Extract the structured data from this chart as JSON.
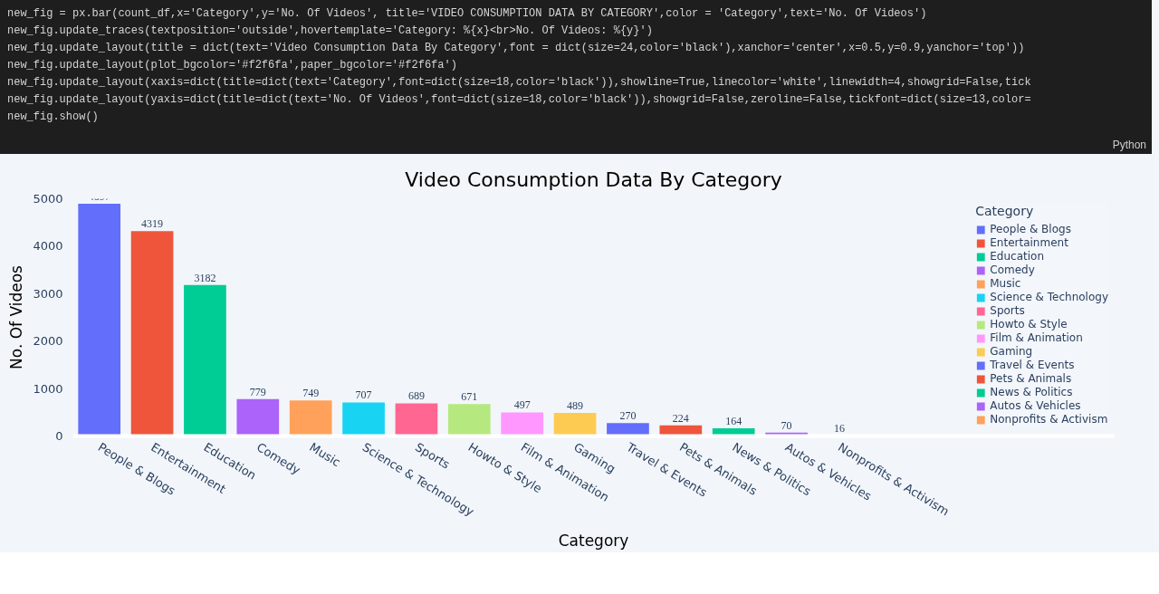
{
  "chart_data": {
    "type": "bar",
    "title": "Video Consumption Data By Category",
    "xlabel": "Category",
    "ylabel": "No. Of Videos",
    "legend_title": "Category",
    "categories": [
      "People & Blogs",
      "Entertainment",
      "Education",
      "Comedy",
      "Music",
      "Science & Technology",
      "Sports",
      "Howto & Style",
      "Film & Animation",
      "Gaming",
      "Travel & Events",
      "Pets & Animals",
      "News & Politics",
      "Autos & Vehicles",
      "Nonprofits & Activism"
    ],
    "series": [
      {
        "name": "People & Blogs",
        "color": "#636efa",
        "values": [
          4897,
          null,
          null,
          null,
          null,
          null,
          null,
          null,
          null,
          null,
          null,
          null,
          null,
          null,
          null
        ]
      },
      {
        "name": "Entertainment",
        "color": "#ef553b",
        "values": [
          null,
          4319,
          null,
          null,
          null,
          null,
          null,
          null,
          null,
          null,
          null,
          null,
          null,
          null,
          null
        ]
      },
      {
        "name": "Education",
        "color": "#00cc96",
        "values": [
          null,
          null,
          3182,
          null,
          null,
          null,
          null,
          null,
          null,
          null,
          null,
          null,
          null,
          null,
          null
        ]
      },
      {
        "name": "Comedy",
        "color": "#ab63fa",
        "values": [
          null,
          null,
          null,
          779,
          null,
          null,
          null,
          null,
          null,
          null,
          null,
          null,
          null,
          null,
          null
        ]
      },
      {
        "name": "Music",
        "color": "#ffa15a",
        "values": [
          null,
          null,
          null,
          null,
          749,
          null,
          null,
          null,
          null,
          null,
          null,
          null,
          null,
          null,
          null
        ]
      },
      {
        "name": "Science & Technology",
        "color": "#19d3f3",
        "values": [
          null,
          null,
          null,
          null,
          null,
          707,
          null,
          null,
          null,
          null,
          null,
          null,
          null,
          null,
          null
        ]
      },
      {
        "name": "Sports",
        "color": "#ff6692",
        "values": [
          null,
          null,
          null,
          null,
          null,
          null,
          689,
          null,
          null,
          null,
          null,
          null,
          null,
          null,
          null
        ]
      },
      {
        "name": "Howto & Style",
        "color": "#b6e880",
        "values": [
          null,
          null,
          null,
          null,
          null,
          null,
          null,
          671,
          null,
          null,
          null,
          null,
          null,
          null,
          null
        ]
      },
      {
        "name": "Film & Animation",
        "color": "#ff97ff",
        "values": [
          null,
          null,
          null,
          null,
          null,
          null,
          null,
          null,
          497,
          null,
          null,
          null,
          null,
          null,
          null
        ]
      },
      {
        "name": "Gaming",
        "color": "#fecb52",
        "values": [
          null,
          null,
          null,
          null,
          null,
          null,
          null,
          null,
          null,
          489,
          null,
          null,
          null,
          null,
          null
        ]
      },
      {
        "name": "Travel & Events",
        "color": "#636efa",
        "values": [
          null,
          null,
          null,
          null,
          null,
          null,
          null,
          null,
          null,
          null,
          270,
          null,
          null,
          null,
          null
        ]
      },
      {
        "name": "Pets & Animals",
        "color": "#ef553b",
        "values": [
          null,
          null,
          null,
          null,
          null,
          null,
          null,
          null,
          null,
          null,
          null,
          224,
          null,
          null,
          null
        ]
      },
      {
        "name": "News & Politics",
        "color": "#00cc96",
        "values": [
          null,
          null,
          null,
          null,
          null,
          null,
          null,
          null,
          null,
          null,
          null,
          null,
          164,
          null,
          null
        ]
      },
      {
        "name": "Autos & Vehicles",
        "color": "#ab63fa",
        "values": [
          null,
          null,
          null,
          null,
          null,
          null,
          null,
          null,
          null,
          null,
          null,
          null,
          null,
          70,
          null
        ]
      },
      {
        "name": "Nonprofits & Activism",
        "color": "#ffa15a",
        "values": [
          null,
          null,
          null,
          null,
          null,
          null,
          null,
          null,
          null,
          null,
          null,
          null,
          null,
          null,
          16
        ]
      }
    ],
    "ylim": [
      0,
      5000
    ],
    "yticks": [
      0,
      1000,
      2000,
      3000,
      4000,
      5000
    ],
    "data_labels": true,
    "grid": false,
    "legend": "right",
    "annotations": [
      "new_fig = px.bar(count_df,x='Category',y='No. Of Videos', title='VIDEO CONSUMPTION DATA BY CATEGORY',color = 'Category',text='No. Of Videos')",
      "new_fig.update_traces(textposition='outside',hovertemplate='Category: %{x}<br>No. Of Videos: %{y}')",
      "new_fig.update_layout(title = dict(text='Video Consumption Data By Category',font = dict(size=24,color='black'),xanchor='center',x=0.5,y=0.9,yanchor='top'))",
      "new_fig.update_layout(plot_bgcolor='#f2f6fa',paper_bgcolor='#f2f6fa')",
      "new_fig.update_layout(xaxis=dict(title=dict(text='Category',font=dict(size=18,color='black')),showline=True,linecolor='white',linewidth=4,showgrid=False,tick",
      "new_fig.update_layout(yaxis=dict(title=dict(text='No. Of Videos',font=dict(size=18,color='black')),showgrid=False,zeroline=False,tickfont=dict(size=13,color=",
      "new_fig.show()",
      "Python"
    ]
  }
}
